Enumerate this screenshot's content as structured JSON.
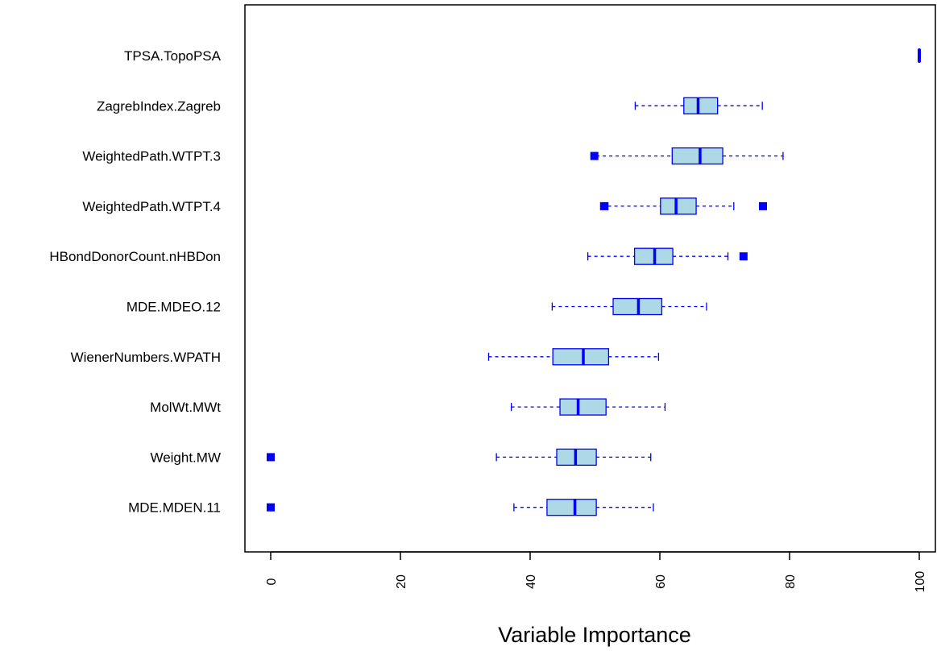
{
  "chart_data": {
    "type": "boxplot",
    "orientation": "horizontal",
    "xlabel": "Variable Importance",
    "xlim": [
      -4.5,
      102.5
    ],
    "xticks": [
      0,
      20,
      40,
      60,
      80,
      100
    ],
    "xtick_labels": [
      "0",
      "20",
      "40",
      "60",
      "80",
      "100"
    ],
    "grid": false,
    "colors": {
      "box_fill": "#add8e6",
      "box_stroke": "#0000ff",
      "outlier": "#0000ff"
    },
    "categories": [
      "TPSA.TopoPSA",
      "ZagrebIndex.Zagreb",
      "WeightedPath.WTPT.3",
      "WeightedPath.WTPT.4",
      "HBondDonorCount.nHBDon",
      "MDE.MDEO.12",
      "WienerNumbers.WPATH",
      "MolWt.MWt",
      "Weight.MW",
      "MDE.MDEN.11"
    ],
    "boxes": [
      {
        "min": 100,
        "q1": 100,
        "median": 100,
        "q3": 100,
        "max": 100,
        "outliers": []
      },
      {
        "min": 56.2,
        "q1": 63.7,
        "median": 65.9,
        "q3": 68.9,
        "max": 75.8,
        "outliers": []
      },
      {
        "min": 50.2,
        "q1": 61.9,
        "median": 66.2,
        "q3": 69.7,
        "max": 79.0,
        "outliers": [
          49.9
        ]
      },
      {
        "min": 52.0,
        "q1": 60.1,
        "median": 62.5,
        "q3": 65.6,
        "max": 71.4,
        "outliers": [
          51.4,
          75.9
        ]
      },
      {
        "min": 48.9,
        "q1": 56.1,
        "median": 59.2,
        "q3": 62.0,
        "max": 70.5,
        "outliers": [
          72.9
        ]
      },
      {
        "min": 43.4,
        "q1": 52.8,
        "median": 56.7,
        "q3": 60.3,
        "max": 67.2,
        "outliers": []
      },
      {
        "min": 33.6,
        "q1": 43.5,
        "median": 48.2,
        "q3": 52.1,
        "max": 59.8,
        "outliers": []
      },
      {
        "min": 37.1,
        "q1": 44.6,
        "median": 47.4,
        "q3": 51.7,
        "max": 60.8,
        "outliers": []
      },
      {
        "min": 34.8,
        "q1": 44.1,
        "median": 47.0,
        "q3": 50.2,
        "max": 58.6,
        "outliers": [
          0
        ]
      },
      {
        "min": 37.5,
        "q1": 42.6,
        "median": 46.9,
        "q3": 50.2,
        "max": 59.0,
        "outliers": [
          0
        ]
      }
    ]
  }
}
